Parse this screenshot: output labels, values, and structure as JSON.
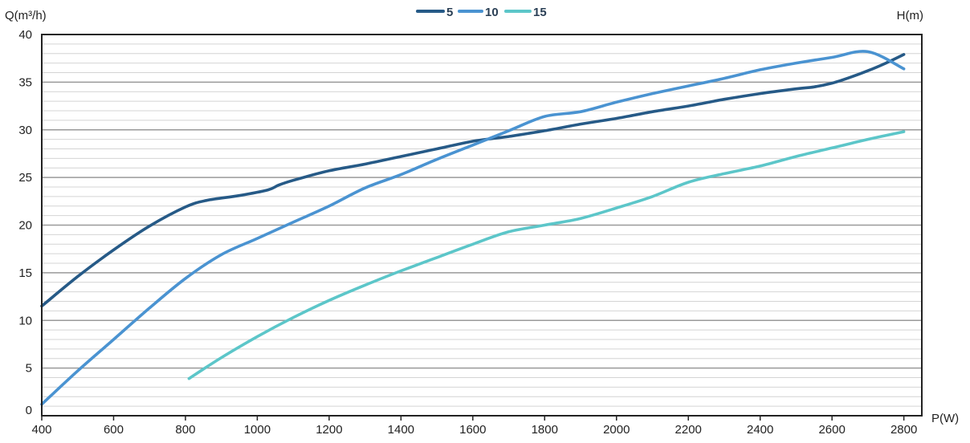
{
  "chart_data": {
    "type": "line",
    "title": "",
    "xlabel": "P(W)",
    "ylabel": "Q(m³/h)",
    "legend_title": "H(m)",
    "legend_position": "top-center",
    "grid": true,
    "xlim": [
      400,
      2850
    ],
    "ylim": [
      0,
      40
    ],
    "x_ticks": [
      400,
      600,
      800,
      1000,
      1200,
      1400,
      1600,
      1800,
      2000,
      2200,
      2400,
      2600,
      2800
    ],
    "y_ticks": [
      0,
      5,
      10,
      15,
      20,
      25,
      30,
      35,
      40
    ],
    "series": [
      {
        "name": "5",
        "color": "#265a87",
        "x": [
          400,
          500,
          600,
          700,
          800,
          860,
          950,
          1030,
          1060,
          1100,
          1200,
          1300,
          1400,
          1500,
          1600,
          1660,
          1700,
          1800,
          1900,
          2000,
          2100,
          2200,
          2300,
          2400,
          2500,
          2550,
          2600,
          2650,
          2700,
          2750,
          2800
        ],
        "y": [
          11.5,
          14.6,
          17.4,
          19.9,
          21.9,
          22.6,
          23.1,
          23.7,
          24.2,
          24.7,
          25.7,
          26.4,
          27.2,
          28.0,
          28.8,
          29.1,
          29.3,
          29.9,
          30.6,
          31.2,
          31.9,
          32.5,
          33.2,
          33.8,
          34.3,
          34.5,
          34.9,
          35.5,
          36.2,
          37.0,
          37.9
        ]
      },
      {
        "name": "10",
        "color": "#4a93d1",
        "x": [
          400,
          500,
          600,
          700,
          800,
          900,
          1000,
          1100,
          1200,
          1300,
          1400,
          1500,
          1600,
          1700,
          1800,
          1900,
          2000,
          2100,
          2200,
          2300,
          2400,
          2500,
          2600,
          2700,
          2800
        ],
        "y": [
          1.2,
          4.7,
          8.0,
          11.3,
          14.4,
          16.9,
          18.6,
          20.3,
          22.0,
          23.9,
          25.3,
          26.9,
          28.4,
          29.9,
          31.4,
          31.9,
          32.9,
          33.8,
          34.6,
          35.4,
          36.3,
          37.0,
          37.6,
          38.2,
          36.4
        ]
      },
      {
        "name": "15",
        "color": "#5cc6c9",
        "x": [
          810,
          900,
          1000,
          1100,
          1200,
          1300,
          1400,
          1500,
          1600,
          1700,
          1800,
          1900,
          2000,
          2100,
          2200,
          2300,
          2400,
          2500,
          2600,
          2700,
          2800
        ],
        "y": [
          3.9,
          6.1,
          8.3,
          10.3,
          12.1,
          13.7,
          15.2,
          16.6,
          18.0,
          19.3,
          20.0,
          20.7,
          21.8,
          23.0,
          24.5,
          25.4,
          26.2,
          27.2,
          28.1,
          29.0,
          29.8
        ]
      }
    ]
  }
}
